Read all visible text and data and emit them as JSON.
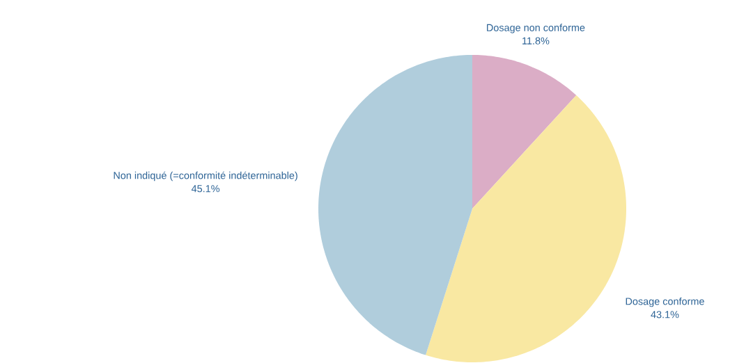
{
  "chart_data": {
    "type": "pie",
    "categories": [
      "Dosage non conforme",
      "Dosage conforme",
      "Non indiqué (=conformité indéterminable)"
    ],
    "values": [
      11.8,
      43.1,
      45.1
    ],
    "value_labels": [
      "11.8%",
      "43.1%",
      "45.1%"
    ],
    "colors": [
      "#dbadc6",
      "#f9e8a2",
      "#b0cddc"
    ]
  }
}
